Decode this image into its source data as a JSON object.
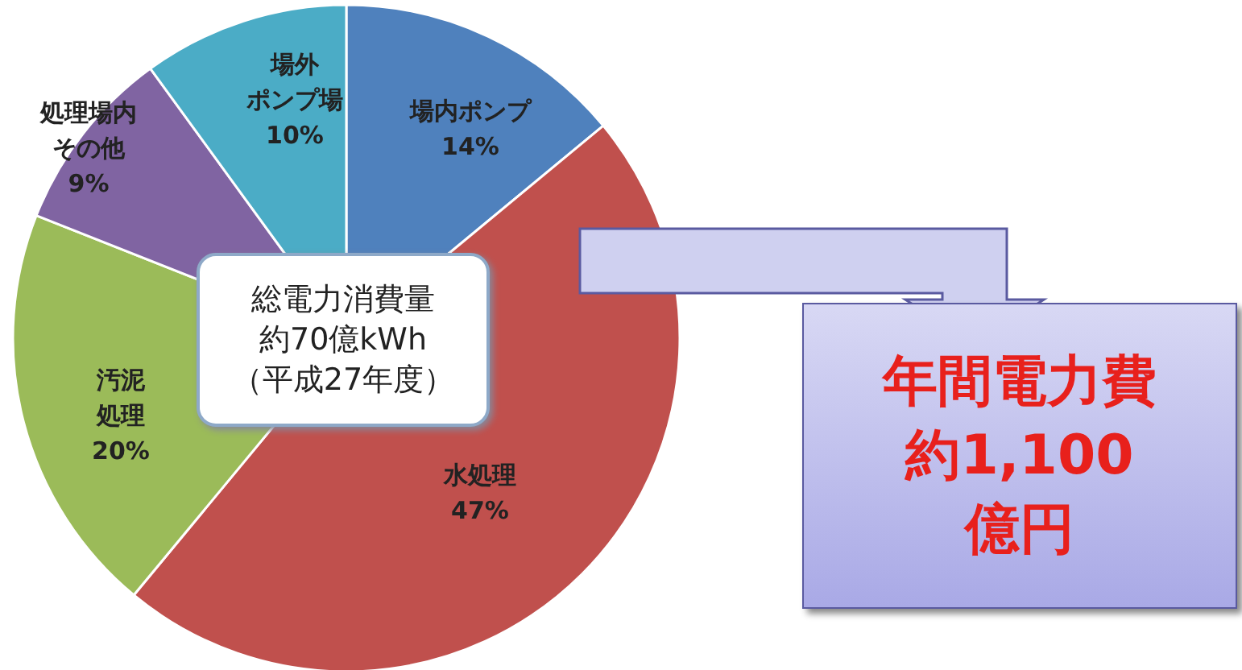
{
  "chart_data": {
    "type": "pie",
    "categories": [
      "場内ポンプ",
      "水処理",
      "汚泥処理",
      "処理場内その他",
      "場外ポンプ場"
    ],
    "values": [
      14,
      47,
      20,
      9,
      10
    ],
    "colors": [
      "#4f81bd",
      "#c0504d",
      "#9bbb59",
      "#8064a2",
      "#4bacc6"
    ],
    "value_labels": [
      "14%",
      "47%",
      "20%",
      "9%",
      "10%"
    ],
    "legend": false,
    "annotations": [
      "総電力消費量約70億kWh（平成27年度）",
      "年間電力費約1,100億円"
    ]
  }
}
